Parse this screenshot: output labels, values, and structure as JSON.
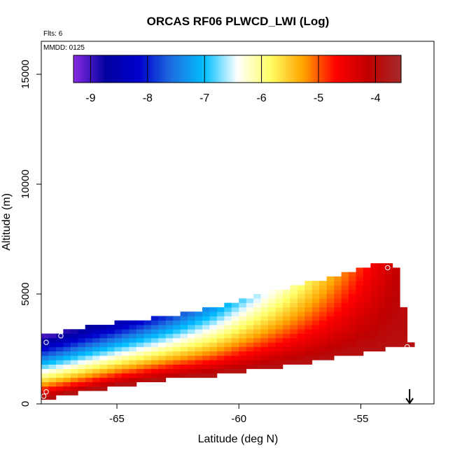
{
  "chart_data": {
    "type": "heatmap",
    "title": "ORCAS RF06 PLWCD_LWI (Log)",
    "xlabel": "Latitude (deg N)",
    "ylabel": "Altitude (m)",
    "xlim": [
      -68.1,
      -52.0
    ],
    "ylim": [
      0,
      16500
    ],
    "x_ticks": [
      -65,
      -60,
      -55
    ],
    "y_ticks": [
      0,
      5000,
      10000,
      15000
    ],
    "notes": {
      "flights": "Flts: 6",
      "date": "MMDD: 0125"
    },
    "colorbar": {
      "min": -9.3,
      "max": -3.55,
      "ticks": [
        -9,
        -8,
        -7,
        -6,
        -5,
        -4
      ],
      "colors": [
        "#8A2BE2",
        "#0000A0",
        "#0000CD",
        "#1E70E0",
        "#00BFFF",
        "#FFFFFF",
        "#FFFF66",
        "#FFA500",
        "#FF0000",
        "#C00000",
        "#A52A2A"
      ]
    },
    "field": {
      "lat_start": -68.1,
      "lat_end": -53.0,
      "lat_step": 0.3,
      "alt_step": 200,
      "top_profile": [
        [
          -68.1,
          3000
        ],
        [
          -66.3,
          3400
        ],
        [
          -63.0,
          3900
        ],
        [
          -61.0,
          4300
        ],
        [
          -59.8,
          4700
        ],
        [
          -58.0,
          5200
        ],
        [
          -56.5,
          5600
        ],
        [
          -54.5,
          6200
        ],
        [
          -53.6,
          6300
        ],
        [
          -53.0,
          2800
        ]
      ],
      "bottom_profile": [
        [
          -68.1,
          300
        ],
        [
          -66.5,
          600
        ],
        [
          -65.0,
          900
        ],
        [
          -63.0,
          1200
        ],
        [
          -61.0,
          1400
        ],
        [
          -59.0,
          1700
        ],
        [
          -57.0,
          2000
        ],
        [
          -55.5,
          2300
        ],
        [
          -54.0,
          2600
        ],
        [
          -53.0,
          2600
        ]
      ],
      "dry_top_value": -9.0,
      "dry_top_east_value": -3.9,
      "wet_base_value": -3.9
    },
    "markers": [
      {
        "type": "circle",
        "lat": -67.9,
        "alt": 2800
      },
      {
        "type": "circle",
        "lat": -67.3,
        "alt": 3100
      },
      {
        "type": "circle",
        "lat": -67.9,
        "alt": 550
      },
      {
        "type": "circle",
        "lat": -68.0,
        "alt": 350
      },
      {
        "type": "circle",
        "lat": -53.1,
        "alt": 2600
      },
      {
        "type": "circle",
        "lat": -53.9,
        "alt": 6200
      },
      {
        "type": "arrow-down",
        "lat": -53.0,
        "alt": 0
      }
    ]
  }
}
